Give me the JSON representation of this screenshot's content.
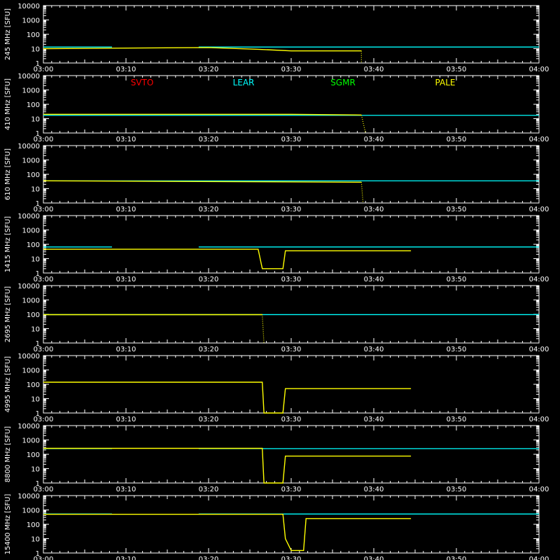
{
  "chart_data": {
    "type": "line",
    "time_ticks": [
      "03:00",
      "03:10",
      "03:20",
      "03:30",
      "03:40",
      "03:50",
      "04:00"
    ],
    "y_ticks": [
      "10000",
      "1000",
      "100",
      "10",
      "1"
    ],
    "y_scale": "log",
    "ylim": [
      1,
      10000
    ],
    "xlim_minutes": [
      0,
      60
    ],
    "legend": [
      {
        "name": "SVTO",
        "color": "#ff0000"
      },
      {
        "name": "LEAR",
        "color": "#00ffff"
      },
      {
        "name": "SGMR",
        "color": "#00ff00"
      },
      {
        "name": "PALE",
        "color": "#ffff00"
      }
    ],
    "panels": [
      {
        "ylabel": "245 MHz [SFU]",
        "lear_level": 13,
        "pale_segments": [
          [
            0,
            10
          ],
          [
            20,
            12
          ],
          [
            26,
            9
          ],
          [
            30,
            7
          ],
          [
            38.5,
            7
          ]
        ],
        "pale_drop": [
          38.5,
          1
        ],
        "lear_gaps": [
          [
            8.3,
            18.8
          ]
        ]
      },
      {
        "ylabel": "410 MHz [SFU]",
        "lear_level": 17,
        "pale_segments": [
          [
            0,
            20
          ],
          [
            30,
            20
          ],
          [
            38.5,
            18
          ]
        ],
        "pale_drop": [
          39,
          1
        ],
        "lear_gaps": []
      },
      {
        "ylabel": "610 MHz [SFU]",
        "lear_level": 35,
        "pale_segments": [
          [
            0,
            35
          ],
          [
            27,
            30
          ],
          [
            38.5,
            28
          ]
        ],
        "pale_drop": [
          38.7,
          1
        ],
        "lear_gaps": []
      },
      {
        "ylabel": "1415 MHz [SFU]",
        "lear_level": 65,
        "pale_segments": [
          [
            0,
            45
          ],
          [
            26,
            45
          ],
          [
            26.5,
            2
          ],
          [
            29,
            2
          ],
          [
            29.3,
            35
          ],
          [
            44.5,
            35
          ]
        ],
        "pale_drop": null,
        "lear_gaps": [
          [
            8.3,
            18.8
          ]
        ]
      },
      {
        "ylabel": "2695 MHz [SFU]",
        "lear_level": 95,
        "pale_segments": [
          [
            0,
            95
          ],
          [
            26.5,
            95
          ]
        ],
        "pale_drop": [
          26.7,
          1
        ],
        "lear_gaps": []
      },
      {
        "ylabel": "4995 MHz [SFU]",
        "lear_level": 140,
        "pale_segments": [
          [
            0,
            140
          ],
          [
            26.5,
            140
          ],
          [
            26.7,
            1
          ],
          [
            29,
            1
          ],
          [
            29.3,
            50
          ],
          [
            44.5,
            50
          ]
        ],
        "pale_drop": null,
        "lear_gaps": [
          [
            0,
            60
          ]
        ]
      },
      {
        "ylabel": "8800 MHz [SFU]",
        "lear_level": 250,
        "pale_segments": [
          [
            0,
            260
          ],
          [
            26.5,
            260
          ],
          [
            26.7,
            1
          ],
          [
            29,
            1
          ],
          [
            29.3,
            75
          ],
          [
            44.5,
            75
          ]
        ],
        "pale_drop": null,
        "lear_gaps": [
          [
            8.3,
            18.8
          ]
        ]
      },
      {
        "ylabel": "15400 MHz [SFU]",
        "lear_level": 520,
        "pale_segments": [
          [
            0,
            500
          ],
          [
            29,
            500
          ],
          [
            29.3,
            10
          ],
          [
            30,
            1.5
          ],
          [
            31.5,
            1.5
          ],
          [
            31.8,
            250
          ],
          [
            44.5,
            250
          ]
        ],
        "pale_drop": null,
        "lear_gaps": [
          [
            8.3,
            18.8
          ]
        ]
      }
    ]
  }
}
